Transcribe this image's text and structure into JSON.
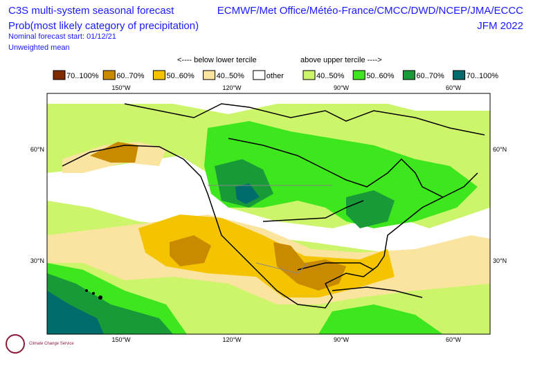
{
  "header": {
    "title_left": [
      "C3S multi-system seasonal forecast",
      "Prob(most likely category of precipitation)"
    ],
    "notes": [
      "Nominal forecast start: 01/12/21",
      "Unweighted mean"
    ],
    "title_right": [
      "ECMWF/Met Office/Météo-France/CMCC/DWD/NCEP/JMA/ECCC",
      "JFM 2022"
    ]
  },
  "legend": {
    "below_label": "<---- below lower tercile",
    "above_label": "above upper tercile ---->",
    "items": [
      {
        "label": "70..100%",
        "color": "#7f2b00"
      },
      {
        "label": "60..70%",
        "color": "#c98a00"
      },
      {
        "label": "50..60%",
        "color": "#f5c400"
      },
      {
        "label": "40..50%",
        "color": "#fbe3a0"
      },
      {
        "label": "other",
        "color": "#ffffff"
      },
      {
        "label": "40..50%",
        "color": "#cdf56c"
      },
      {
        "label": "50..60%",
        "color": "#3ee61e"
      },
      {
        "label": "60..70%",
        "color": "#199a38"
      },
      {
        "label": "70..100%",
        "color": "#006b6b"
      }
    ]
  },
  "axes": {
    "longitudes": [
      "150°W",
      "120°W",
      "90°W",
      "60°W"
    ],
    "latitudes": [
      "60°N",
      "30°N"
    ]
  },
  "logo": {
    "text": "Climate Change Service"
  }
}
